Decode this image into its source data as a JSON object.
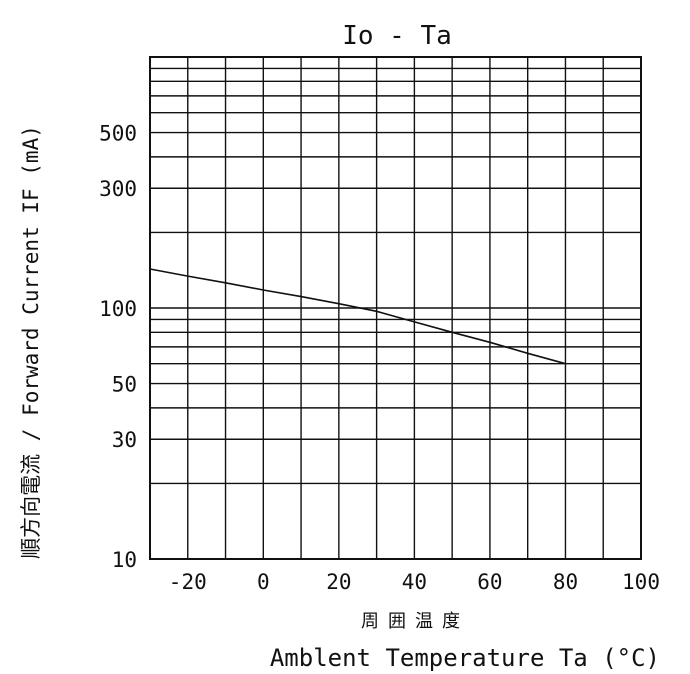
{
  "chart_data": {
    "type": "line",
    "title": "Io - Ta",
    "xlabel_jp": "周囲温度",
    "xlabel": "Amblent Temperature Ta (°C)",
    "ylabel": "順方向電流 / Forward Current IF (mA)",
    "xlim": [
      -30,
      100
    ],
    "ylim": [
      10,
      1000
    ],
    "y_scale": "log",
    "grid": true,
    "x_tick_labels": [
      "-20",
      "0",
      "20",
      "40",
      "60",
      "80",
      "100"
    ],
    "x_tick_values": [
      -20,
      0,
      20,
      40,
      60,
      80,
      100
    ],
    "y_tick_labels": [
      "10",
      "30",
      "50",
      "100",
      "300",
      "500"
    ],
    "y_tick_values": [
      10,
      30,
      50,
      100,
      300,
      500
    ],
    "series": [
      {
        "x": [
          -30,
          -20,
          -10,
          0,
          10,
          20,
          30,
          40,
          50,
          60,
          70,
          80
        ],
        "y": [
          143,
          134,
          126,
          118,
          111,
          104,
          97,
          88,
          80,
          73,
          66,
          60
        ]
      }
    ]
  }
}
